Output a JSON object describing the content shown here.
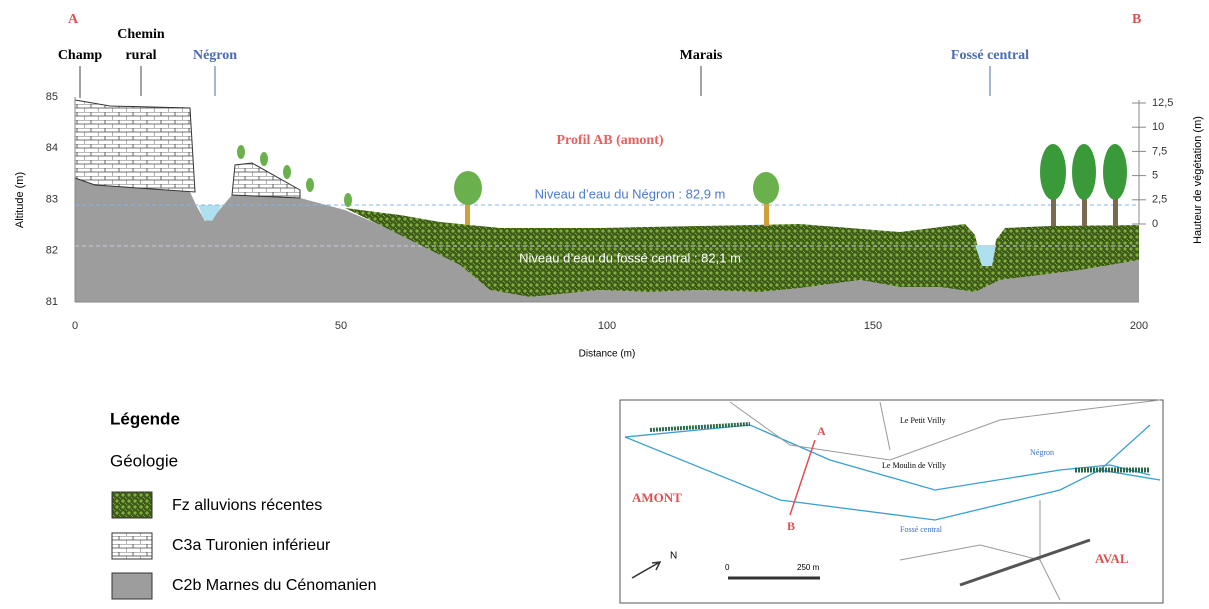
{
  "profile": {
    "ends": [
      "A",
      "B"
    ],
    "places": [
      "Champ",
      "Chemin",
      "rural",
      "Négron",
      "Marais",
      "Fossé central"
    ],
    "title": "Profil AB (amont)",
    "water_levels": [
      "Niveau d’eau du Négron : 82,9 m",
      "Niveau d’eau du fossé central : 82,1 m"
    ],
    "y_label": "Altitude (m)",
    "y2_label": "Hauteur de végétation (m)",
    "x_label": "Distance (m)",
    "yticks": [
      85,
      84,
      83,
      82,
      81
    ],
    "xticks": [
      0,
      50,
      100,
      150,
      200
    ],
    "y2ticks": [
      "12,5",
      10,
      "7,5",
      5,
      "2,5",
      0
    ]
  },
  "legend": {
    "title": "Légende",
    "subtitle": "Géologie",
    "items": [
      "Fz alluvions récentes",
      "C3a Turonien inférieur",
      "C2b Marnes du Cénomanien"
    ]
  },
  "map": {
    "ends": [
      "A",
      "B"
    ],
    "sides": [
      "AMONT",
      "AVAL"
    ],
    "places": [
      "Le Petit Vrilly",
      "Le Moulin de Vrilly"
    ],
    "streams": [
      "Négron",
      "Fossé central"
    ],
    "scale": [
      "0",
      "250 m"
    ],
    "north": "N"
  }
}
